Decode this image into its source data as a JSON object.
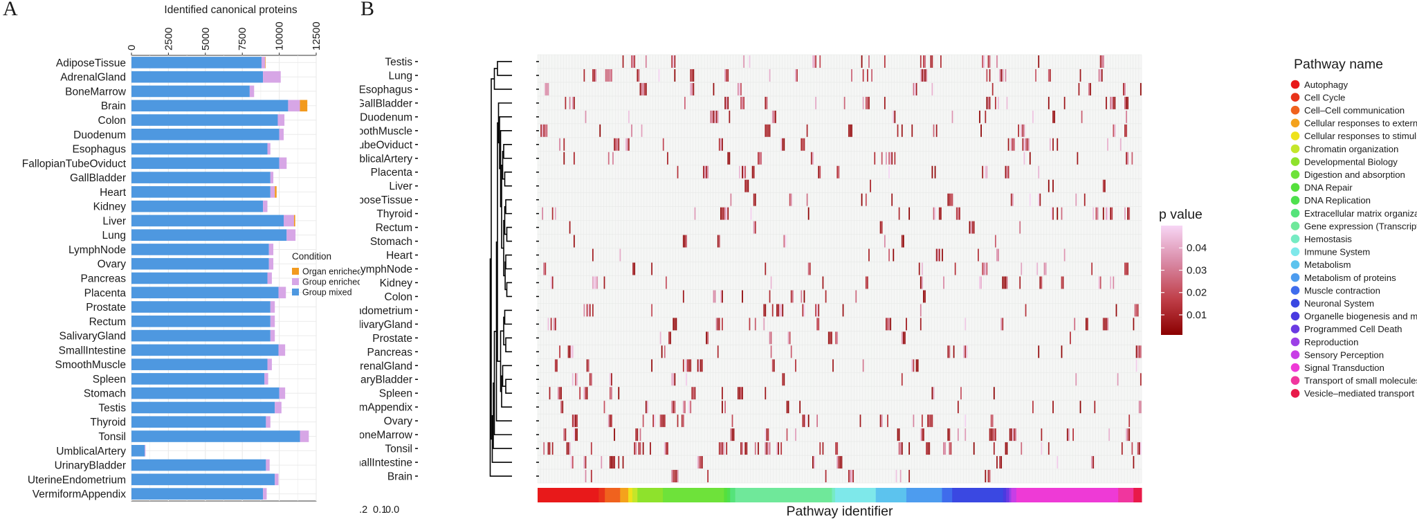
{
  "panel_labels": {
    "a": "A",
    "b": "B"
  },
  "chart_data": [
    {
      "type": "bar",
      "stacked": true,
      "orientation": "horizontal",
      "title": "Identified canonical proteins",
      "xlim": [
        0,
        12500
      ],
      "xticks": [
        0,
        2500,
        5000,
        7500,
        10000,
        12500
      ],
      "grid": true,
      "legend": {
        "title": "Condition",
        "position": "right",
        "entries": [
          "Organ enriched",
          "Group enriched",
          "Group mixed"
        ]
      },
      "colors": {
        "Group mixed": "#4e98e0",
        "Group enriched": "#d7a6e6",
        "Organ enriched": "#f29a1e"
      },
      "categories": [
        "AdiposeTissue",
        "AdrenalGland",
        "BoneMarrow",
        "Brain",
        "Colon",
        "Duodenum",
        "Esophagus",
        "FallopianTubeOviduct",
        "GallBladder",
        "Heart",
        "Kidney",
        "Liver",
        "Lung",
        "LymphNode",
        "Ovary",
        "Pancreas",
        "Placenta",
        "Prostate",
        "Rectum",
        "SalivaryGland",
        "SmallIntestine",
        "SmoothMuscle",
        "Spleen",
        "Stomach",
        "Testis",
        "Thyroid",
        "Tonsil",
        "UmblicalArtery",
        "UrinaryBladder",
        "UterineEndometrium",
        "VermiformAppendix"
      ],
      "series": [
        {
          "name": "Group mixed",
          "values": [
            8800,
            8900,
            8000,
            10600,
            9900,
            10000,
            9200,
            10000,
            9400,
            9400,
            8900,
            10300,
            10500,
            9300,
            9300,
            9200,
            9950,
            9400,
            9400,
            9400,
            9950,
            9200,
            9000,
            10000,
            9700,
            9100,
            11400,
            900,
            9100,
            9700,
            8900
          ]
        },
        {
          "name": "Group enriched",
          "values": [
            250,
            1200,
            300,
            800,
            450,
            300,
            200,
            500,
            200,
            300,
            300,
            700,
            600,
            300,
            300,
            300,
            500,
            300,
            300,
            300,
            450,
            300,
            250,
            400,
            450,
            300,
            600,
            50,
            250,
            250,
            250
          ]
        },
        {
          "name": "Organ enriched",
          "values": [
            30,
            0,
            0,
            500,
            0,
            0,
            0,
            0,
            0,
            120,
            0,
            80,
            0,
            0,
            0,
            0,
            0,
            0,
            0,
            0,
            0,
            0,
            0,
            0,
            0,
            0,
            0,
            0,
            0,
            0,
            0
          ]
        }
      ]
    },
    {
      "type": "heatmap",
      "xlabel": "Pathway identifier",
      "rows": [
        "Testis",
        "Lung",
        "Esophagus",
        "GallBladder",
        "Duodenum",
        "SmoothMuscle",
        "FallopianTubeOviduct",
        "UmblicalArtery",
        "Placenta",
        "Liver",
        "AdiposeTissue",
        "Thyroid",
        "Rectum",
        "Stomach",
        "Heart",
        "LymphNode",
        "Kidney",
        "Colon",
        "UterineEndometrium",
        "SalivaryGland",
        "Prostate",
        "Pancreas",
        "AdrenalGland",
        "UrinaryBladder",
        "Spleen",
        "VermiformAppendix",
        "Ovary",
        "BoneMarrow",
        "Tonsil",
        "SmallIntestine",
        "Brain"
      ],
      "dendrogram_ticks": [
        "0.2",
        "0.1",
        "0.0"
      ],
      "colorbar": {
        "title": "p value",
        "ticks": [
          "0.04",
          "0.03",
          "0.02",
          "0.01"
        ],
        "range": [
          0.001,
          0.05
        ],
        "colors": [
          "#8b0000",
          "#c0404a",
          "#d98aa6",
          "#f7d6f5"
        ]
      },
      "pathway_legend": {
        "title": "Pathway name",
        "entries": [
          {
            "name": "Autophagy",
            "color": "#e8191a"
          },
          {
            "name": "Cell Cycle",
            "color": "#e8331a"
          },
          {
            "name": "Cell–Cell communication",
            "color": "#f0621e"
          },
          {
            "name": "Cellular responses to external stimuli",
            "color": "#f4a21c"
          },
          {
            "name": "Cellular responses to stimuli",
            "color": "#eee21b"
          },
          {
            "name": "Chromatin organization",
            "color": "#c4e62a"
          },
          {
            "name": "Developmental Biology",
            "color": "#8ee22c"
          },
          {
            "name": "Digestion and absorption",
            "color": "#6ee23a"
          },
          {
            "name": "DNA Repair",
            "color": "#55e03c"
          },
          {
            "name": "DNA Replication",
            "color": "#4ee04e"
          },
          {
            "name": "Extracellular matrix organization",
            "color": "#55e37a"
          },
          {
            "name": "Gene expression (Transcription)",
            "color": "#6fe89a"
          },
          {
            "name": "Hemostasis",
            "color": "#76ebc3"
          },
          {
            "name": "Immune System",
            "color": "#7ee8ea"
          },
          {
            "name": "Metabolism",
            "color": "#5cc3ee"
          },
          {
            "name": "Metabolism of proteins",
            "color": "#4d9cef"
          },
          {
            "name": "Muscle contraction",
            "color": "#3f6cec"
          },
          {
            "name": "Neuronal System",
            "color": "#3a48e2"
          },
          {
            "name": "Organelle biogenesis and maintenance",
            "color": "#4a3ae0"
          },
          {
            "name": "Programmed Cell Death",
            "color": "#6a3ae2"
          },
          {
            "name": "Reproduction",
            "color": "#9c40e6"
          },
          {
            "name": "Sensory Perception",
            "color": "#c83ee6"
          },
          {
            "name": "Signal Transduction",
            "color": "#ee3ad6"
          },
          {
            "name": "Transport of small molecules",
            "color": "#f0369e"
          },
          {
            "name": "Vesicle–mediated transport",
            "color": "#e81a4a"
          }
        ]
      },
      "pathway_bar_widths": [
        6,
        0.6,
        1.5,
        0.8,
        0.4,
        0.5,
        2.5,
        6,
        0.3,
        0.3,
        0.5,
        9.5,
        0.3,
        4,
        3,
        3.5,
        1,
        5,
        0.3,
        0.3,
        0.2,
        0.5,
        10,
        1.5,
        0.8
      ]
    }
  ]
}
